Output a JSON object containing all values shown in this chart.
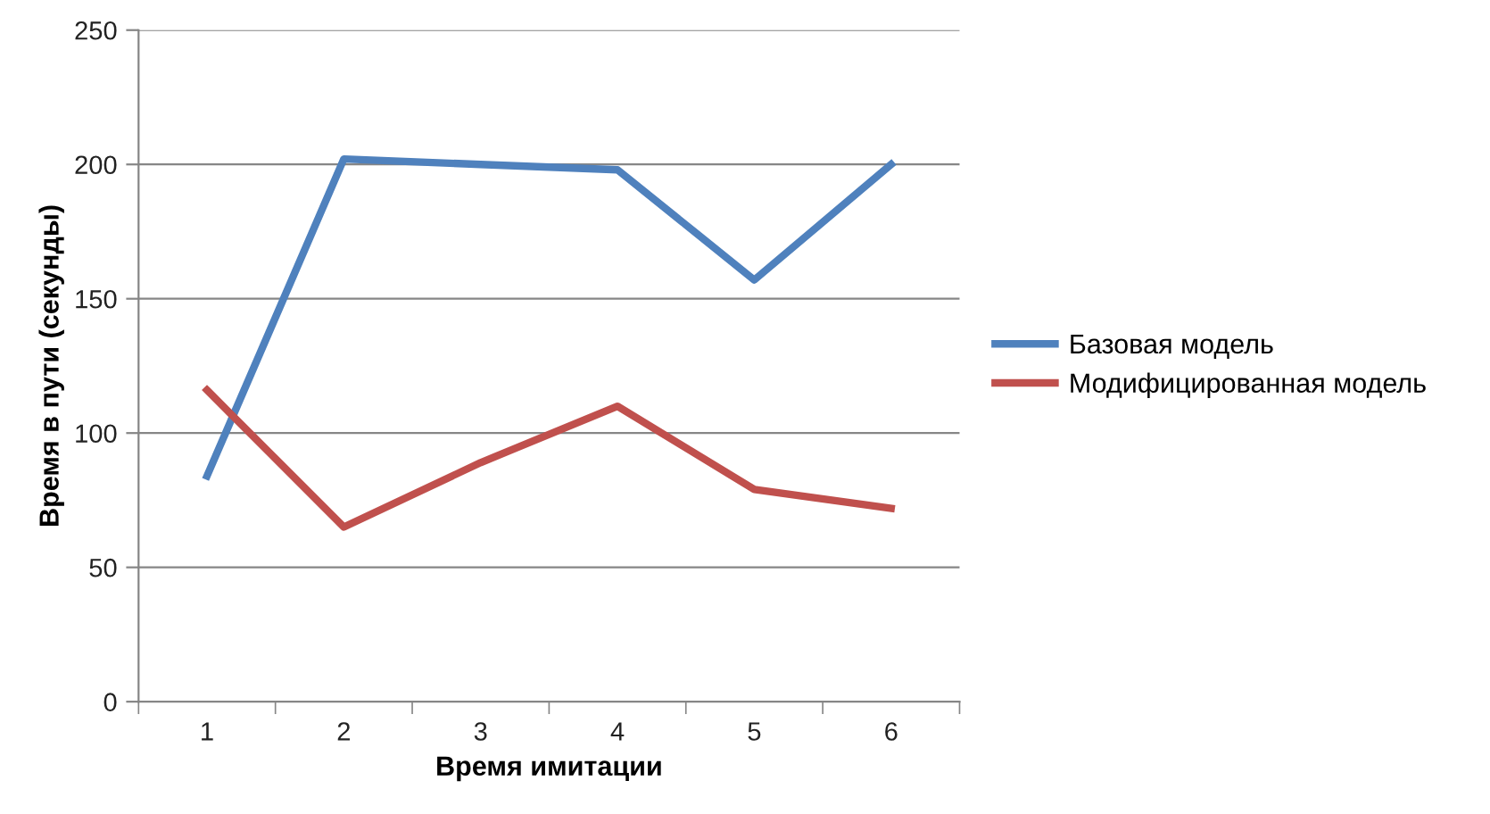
{
  "chart_data": {
    "type": "line",
    "xlabel": "Время имитации",
    "ylabel": "Время в пути (секунды)",
    "categories": [
      "1",
      "2",
      "3",
      "4",
      "5",
      "6"
    ],
    "series": [
      {
        "name": "Базовая модель",
        "color": "#4f81bd",
        "values": [
          84,
          202,
          200,
          198,
          157,
          200
        ]
      },
      {
        "name": "Модифицированная модель",
        "color": "#c0504d",
        "values": [
          116,
          65,
          89,
          110,
          79,
          72
        ]
      }
    ],
    "ylim": [
      0,
      250
    ],
    "yticks": [
      0,
      50,
      100,
      150,
      200,
      250
    ],
    "grid": "y",
    "legend": "right",
    "marker": "none",
    "line_style": "solid"
  }
}
